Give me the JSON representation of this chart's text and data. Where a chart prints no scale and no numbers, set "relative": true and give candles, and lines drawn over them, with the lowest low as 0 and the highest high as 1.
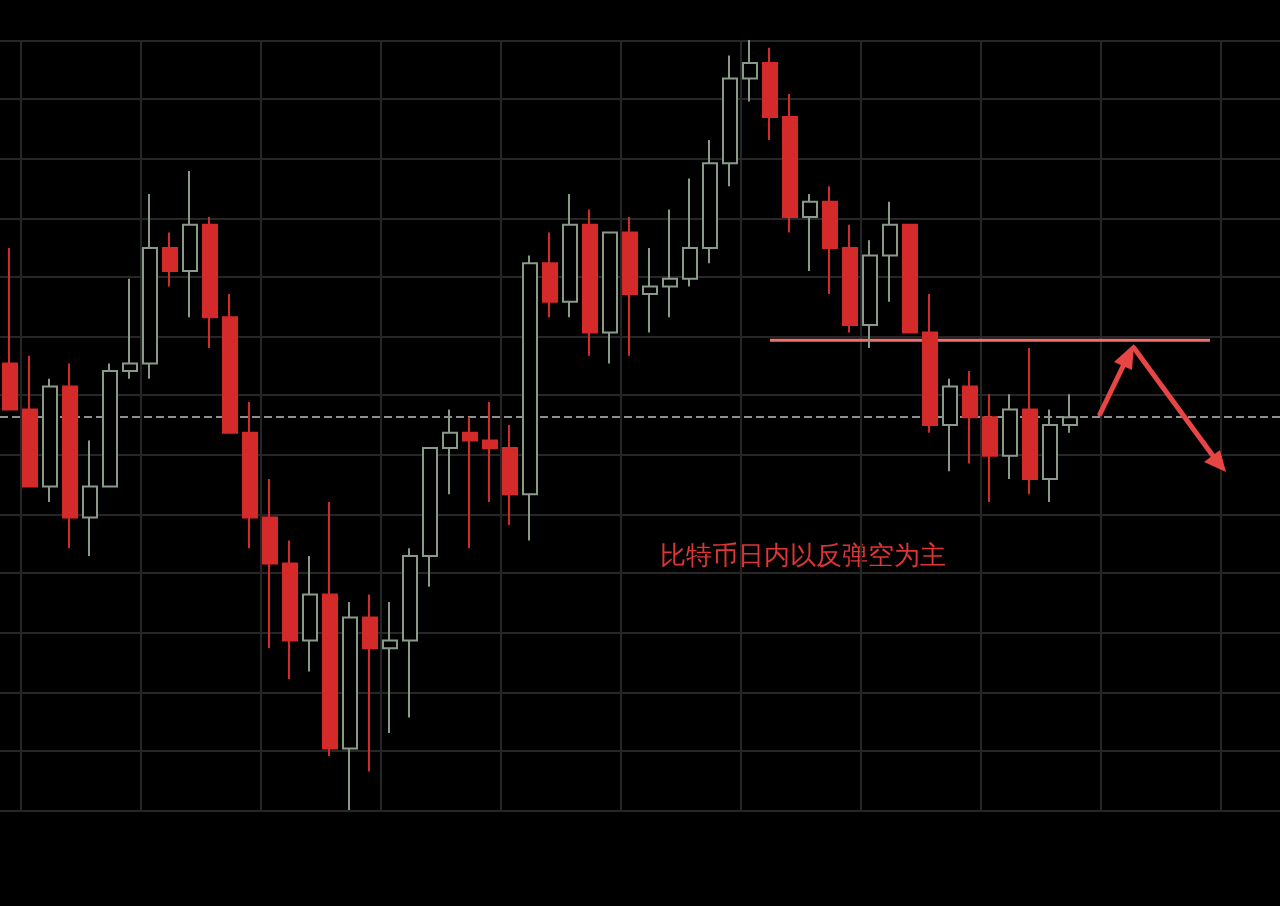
{
  "chart_data": {
    "type": "candlestick",
    "relative": true,
    "grid": true,
    "annotations": [
      "比特币日内以反弹空为主"
    ],
    "categories": [
      null,
      null,
      null,
      null,
      null,
      null,
      null,
      null,
      null,
      null,
      null,
      null,
      null,
      null,
      null,
      null,
      null,
      null,
      null,
      null,
      null,
      null,
      null,
      null,
      null,
      null,
      null,
      null,
      null,
      null,
      null,
      null,
      null,
      null,
      null,
      null,
      null,
      null,
      null,
      null,
      null,
      null,
      null,
      null,
      null,
      null,
      null,
      null,
      null,
      null,
      null,
      null,
      null,
      null,
      null,
      null,
      null,
      null,
      null,
      null,
      null,
      null,
      null,
      null
    ],
    "ohlc": [
      [
        0.58,
        0.73,
        0.52,
        0.52
      ],
      [
        0.52,
        0.59,
        0.42,
        0.42
      ],
      [
        0.42,
        0.56,
        0.4,
        0.55
      ],
      [
        0.55,
        0.58,
        0.34,
        0.38
      ],
      [
        0.38,
        0.48,
        0.33,
        0.42
      ],
      [
        0.42,
        0.58,
        0.42,
        0.57
      ],
      [
        0.57,
        0.69,
        0.56,
        0.58
      ],
      [
        0.58,
        0.8,
        0.56,
        0.73
      ],
      [
        0.73,
        0.75,
        0.68,
        0.7
      ],
      [
        0.7,
        0.83,
        0.64,
        0.76
      ],
      [
        0.76,
        0.77,
        0.6,
        0.64
      ],
      [
        0.64,
        0.67,
        0.49,
        0.49
      ],
      [
        0.49,
        0.53,
        0.34,
        0.38
      ],
      [
        0.38,
        0.43,
        0.21,
        0.32
      ],
      [
        0.32,
        0.35,
        0.17,
        0.22
      ],
      [
        0.22,
        0.33,
        0.18,
        0.28
      ],
      [
        0.28,
        0.4,
        0.07,
        0.08
      ],
      [
        0.08,
        0.27,
        0,
        0.25
      ],
      [
        0.25,
        0.28,
        0.05,
        0.21
      ],
      [
        0.21,
        0.27,
        0.1,
        0.22
      ],
      [
        0.22,
        0.34,
        0.12,
        0.33
      ],
      [
        0.33,
        0.47,
        0.29,
        0.47
      ],
      [
        0.47,
        0.52,
        0.41,
        0.49
      ],
      [
        0.49,
        0.51,
        0.34,
        0.48
      ],
      [
        0.48,
        0.53,
        0.4,
        0.47
      ],
      [
        0.47,
        0.5,
        0.37,
        0.41
      ],
      [
        0.41,
        0.72,
        0.35,
        0.71
      ],
      [
        0.71,
        0.75,
        0.64,
        0.66
      ],
      [
        0.66,
        0.8,
        0.64,
        0.76
      ],
      [
        0.76,
        0.78,
        0.59,
        0.62
      ],
      [
        0.62,
        0.75,
        0.58,
        0.75
      ],
      [
        0.75,
        0.77,
        0.59,
        0.67
      ],
      [
        0.67,
        0.73,
        0.62,
        0.68
      ],
      [
        0.68,
        0.78,
        0.64,
        0.69
      ],
      [
        0.69,
        0.82,
        0.68,
        0.73
      ],
      [
        0.73,
        0.87,
        0.71,
        0.84
      ],
      [
        0.84,
        0.98,
        0.81,
        0.95
      ],
      [
        0.95,
        1,
        0.92,
        0.97
      ],
      [
        0.97,
        0.99,
        0.87,
        0.9
      ],
      [
        0.9,
        0.93,
        0.75,
        0.77
      ],
      [
        0.77,
        0.8,
        0.7,
        0.79
      ],
      [
        0.79,
        0.81,
        0.67,
        0.73
      ],
      [
        0.73,
        0.76,
        0.62,
        0.63
      ],
      [
        0.63,
        0.74,
        0.6,
        0.72
      ],
      [
        0.72,
        0.79,
        0.66,
        0.76
      ],
      [
        0.76,
        0.76,
        0.62,
        0.62
      ],
      [
        0.62,
        0.67,
        0.49,
        0.5
      ],
      [
        0.5,
        0.56,
        0.44,
        0.55
      ],
      [
        0.55,
        0.57,
        0.45,
        0.51
      ],
      [
        0.51,
        0.54,
        0.4,
        0.46
      ],
      [
        0.46,
        0.54,
        0.43,
        0.52
      ],
      [
        0.52,
        0.6,
        0.41,
        0.43
      ],
      [
        0.43,
        0.52,
        0.4,
        0.5
      ],
      [
        0.5,
        0.54,
        0.49,
        0.51
      ],
      null,
      null,
      null,
      null,
      null,
      null,
      null,
      null,
      null,
      null
    ],
    "colors": [
      "#d42a2a",
      "#d42a2a",
      "#8a9a8a",
      "#d42a2a",
      "#8a9a8a",
      "#8a9a8a",
      "#8a9a8a",
      "#8a9a8a",
      "#d42a2a",
      "#8a9a8a",
      "#d42a2a",
      "#d42a2a",
      "#d42a2a",
      "#d42a2a",
      "#d42a2a",
      "#8a9a8a",
      "#d42a2a",
      "#8a9a8a",
      "#d42a2a",
      "#8a9a8a",
      "#8a9a8a",
      "#8a9a8a",
      "#8a9a8a",
      "#d42a2a",
      "#d42a2a",
      "#d42a2a",
      "#8a9a8a",
      "#d42a2a",
      "#8a9a8a",
      "#d42a2a",
      "#8a9a8a",
      "#d42a2a",
      "#8a9a8a",
      "#8a9a8a",
      "#8a9a8a",
      "#8a9a8a",
      "#8a9a8a",
      "#8a9a8a",
      "#d42a2a",
      "#d42a2a",
      "#8a9a8a",
      "#d42a2a",
      "#d42a2a",
      "#8a9a8a",
      "#8a9a8a",
      "#d42a2a",
      "#d42a2a",
      "#8a9a8a",
      "#d42a2a",
      "#d42a2a",
      "#8a9a8a",
      "#d42a2a",
      "#8a9a8a",
      "#8a9a8a",
      null,
      null,
      null,
      null,
      null,
      null,
      null,
      null,
      null,
      null
    ],
    "series": [
      {
        "type": "line",
        "color": "#f07070",
        "marker": "none",
        "values": [
          null,
          null,
          null,
          null,
          null,
          null,
          null,
          null,
          null,
          null,
          null,
          null,
          null,
          null,
          null,
          null,
          null,
          null,
          null,
          null,
          null,
          null,
          null,
          null,
          null,
          null,
          null,
          null,
          null,
          null,
          null,
          null,
          null,
          null,
          null,
          null,
          null,
          null,
          0.61,
          0.61,
          0.61,
          0.61,
          0.61,
          0.61,
          0.61,
          0.61,
          0.61,
          0.61,
          0.61,
          0.61,
          0.61,
          0.61,
          0.61,
          0.61,
          0.61,
          0.61,
          0.61,
          0.61,
          0.61,
          0.61,
          0.61,
          null,
          null,
          null
        ]
      }
    ],
    "ref_lines": [
      {
        "axis": "y",
        "value": 0.51,
        "color": "#909090",
        "line_style": "dashed"
      }
    ]
  }
}
